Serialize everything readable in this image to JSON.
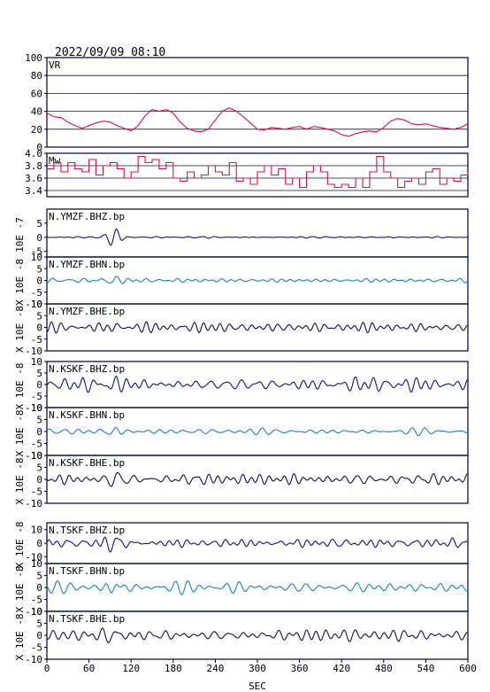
{
  "timestamp": "2022/09/09  08:10",
  "x_axis": {
    "label": "SEC",
    "range": [
      0,
      600
    ],
    "ticks": [
      "0",
      "60",
      "120",
      "180",
      "240",
      "300",
      "360",
      "420",
      "480",
      "540",
      "600"
    ]
  },
  "colors": {
    "vr_mw": "#dd1144",
    "dark_blue": "#10108a",
    "light_blue": "#1a7fd0",
    "navy": "#10104a",
    "frame": "#0a1440"
  },
  "chart_data": [
    {
      "type": "line",
      "title": "VR",
      "ylim": [
        0,
        100
      ],
      "ticks": [
        "0",
        "20",
        "40",
        "60",
        "80",
        "100"
      ],
      "grid": true,
      "series": [
        {
          "name": "VR",
          "color": "#dd1144",
          "x": [
            0,
            10,
            20,
            30,
            40,
            50,
            60,
            70,
            80,
            90,
            100,
            110,
            120,
            130,
            140,
            150,
            160,
            170,
            180,
            190,
            200,
            210,
            220,
            230,
            240,
            250,
            260,
            270,
            280,
            290,
            300,
            310,
            320,
            330,
            340,
            350,
            360,
            370,
            380,
            390,
            400,
            410,
            420,
            430,
            440,
            450,
            460,
            470,
            480,
            490,
            500,
            510,
            520,
            530,
            540,
            550,
            560,
            570,
            580,
            590,
            600
          ],
          "values": [
            38,
            34,
            33,
            28,
            24,
            21,
            24,
            27,
            29,
            28,
            24,
            21,
            18,
            24,
            35,
            42,
            40,
            42,
            38,
            28,
            21,
            18,
            17,
            20,
            30,
            40,
            44,
            40,
            34,
            27,
            20,
            19,
            22,
            21,
            20,
            22,
            23,
            20,
            23,
            22,
            20,
            18,
            14,
            12,
            15,
            17,
            18,
            17,
            22,
            29,
            32,
            30,
            26,
            25,
            26,
            24,
            22,
            21,
            20,
            22,
            26
          ]
        }
      ]
    },
    {
      "type": "line",
      "title": "Mw",
      "ylim": [
        3.3,
        4.0
      ],
      "ticks": [
        "3.4",
        "3.6",
        "3.8",
        "4.0"
      ],
      "grid": true,
      "series": [
        {
          "name": "Mw",
          "color": "#dd1144",
          "x": [
            0,
            10,
            20,
            30,
            40,
            50,
            60,
            70,
            80,
            90,
            100,
            110,
            120,
            130,
            140,
            150,
            160,
            170,
            180,
            190,
            200,
            210,
            220,
            230,
            240,
            250,
            260,
            270,
            280,
            290,
            300,
            310,
            320,
            330,
            340,
            350,
            360,
            370,
            380,
            390,
            400,
            410,
            420,
            430,
            440,
            450,
            460,
            470,
            480,
            490,
            500,
            510,
            520,
            530,
            540,
            550,
            560,
            570,
            580,
            590,
            600
          ],
          "values": [
            3.75,
            3.85,
            3.7,
            3.85,
            3.75,
            3.7,
            3.9,
            3.65,
            3.8,
            3.85,
            3.75,
            3.6,
            3.7,
            3.95,
            3.85,
            3.9,
            3.75,
            3.85,
            3.6,
            3.55,
            3.7,
            3.6,
            3.65,
            3.8,
            3.7,
            3.65,
            3.85,
            3.55,
            3.6,
            3.5,
            3.7,
            3.8,
            3.65,
            3.75,
            3.5,
            3.6,
            3.45,
            3.7,
            3.8,
            3.7,
            3.5,
            3.45,
            3.5,
            3.45,
            3.6,
            3.45,
            3.7,
            3.95,
            3.7,
            3.6,
            3.45,
            3.55,
            3.6,
            3.5,
            3.7,
            3.75,
            3.5,
            3.6,
            3.55,
            3.65,
            3.7
          ]
        }
      ]
    },
    {
      "type": "line",
      "title": "N.YMZF.BHZ.bp",
      "ylabel": "10E -7",
      "ylim": [
        -7,
        10
      ],
      "ticks": [
        "-5",
        "0",
        "5"
      ],
      "series": [
        {
          "name": "N.YMZF.BHZ.bp",
          "color": "#10108a"
        }
      ]
    },
    {
      "type": "line",
      "title": "N.YMZF.BHN.bp",
      "ylabel": "X 10E -8",
      "ylim": [
        -10,
        10
      ],
      "ticks": [
        "-10",
        "-5",
        "0",
        "5",
        "10"
      ],
      "series": [
        {
          "name": "N.YMZF.BHN.bp",
          "color": "#1a7fd0"
        }
      ]
    },
    {
      "type": "line",
      "title": "N.YMZF.BHE.bp",
      "ylabel": "X 10E -8",
      "ylim": [
        -10,
        10
      ],
      "ticks": [
        "-10",
        "-5",
        "0",
        "5",
        "10"
      ],
      "series": [
        {
          "name": "N.YMZF.BHE.bp",
          "color": "#10104a"
        }
      ]
    },
    {
      "type": "line",
      "title": "N.KSKF.BHZ.bp",
      "ylabel": "X 10E -8",
      "ylim": [
        -10,
        10
      ],
      "ticks": [
        "-10",
        "-5",
        "0",
        "5",
        "10"
      ],
      "series": [
        {
          "name": "N.KSKF.BHZ.bp",
          "color": "#10108a"
        }
      ]
    },
    {
      "type": "line",
      "title": "N.KSKF.BHN.bp",
      "ylabel": "X 10E -8",
      "ylim": [
        -10,
        10
      ],
      "ticks": [
        "-10",
        "-5",
        "0",
        "5",
        "10"
      ],
      "series": [
        {
          "name": "N.KSKF.BHN.bp",
          "color": "#1a7fd0"
        }
      ]
    },
    {
      "type": "line",
      "title": "N.KSKF.BHE.bp",
      "ylabel": "X 10E -8",
      "ylim": [
        -10,
        10
      ],
      "ticks": [
        "-10",
        "-5",
        "0",
        "5",
        "10"
      ],
      "series": [
        {
          "name": "N.KSKF.BHE.bp",
          "color": "#10104a"
        }
      ]
    },
    {
      "type": "line",
      "title": "N.TSKF.BHZ.bp",
      "ylabel": "X 10E -8",
      "ylim": [
        -15,
        15
      ],
      "ticks": [
        "-10",
        "0",
        "10"
      ],
      "series": [
        {
          "name": "N.TSKF.BHZ.bp",
          "color": "#10108a"
        }
      ]
    },
    {
      "type": "line",
      "title": "N.TSKF.BHN.bp",
      "ylabel": "X 10E -8",
      "ylim": [
        -10,
        10
      ],
      "ticks": [
        "-10",
        "-5",
        "0",
        "5",
        "10"
      ],
      "series": [
        {
          "name": "N.TSKF.BHN.bp",
          "color": "#1a7fd0"
        }
      ]
    },
    {
      "type": "line",
      "title": "N.TSKF.BHE.bp",
      "ylabel": "X 10E -8",
      "ylim": [
        -10,
        10
      ],
      "ticks": [
        "-10",
        "-5",
        "0",
        "5",
        "10"
      ],
      "series": [
        {
          "name": "N.TSKF.BHE.bp",
          "color": "#10104a"
        }
      ]
    }
  ]
}
